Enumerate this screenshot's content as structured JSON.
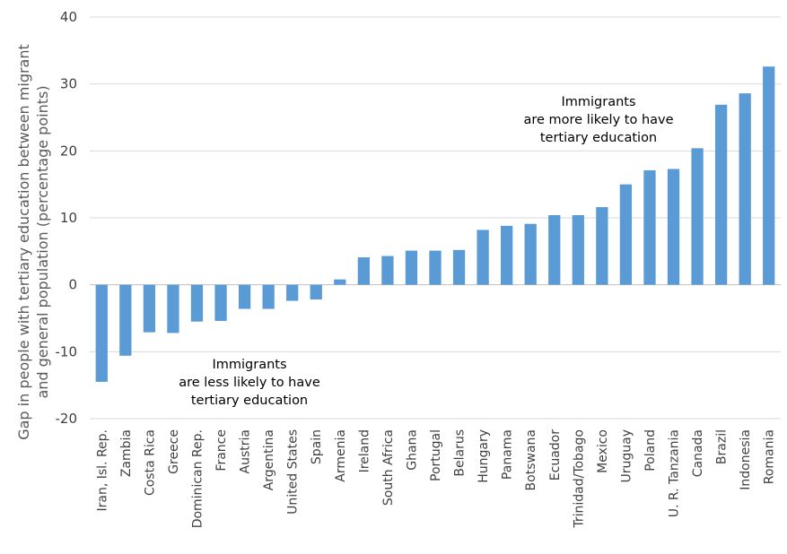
{
  "chart_data": {
    "type": "bar",
    "ylabel_lines": [
      "Gap in people with tertiary education between migrant",
      "and general population (percentage points)"
    ],
    "ylim": [
      -20,
      40
    ],
    "yticks": [
      -20,
      -10,
      0,
      10,
      20,
      30,
      40
    ],
    "grid": true,
    "bar_color": "#5b9bd5",
    "categories": [
      "Iran, Isl. Rep.",
      "Zambia",
      "Costa Rica",
      "Greece",
      "Dominican Rep.",
      "France",
      "Austria",
      "Argentina",
      "United States",
      "Spain",
      "Armenia",
      "Ireland",
      "South Africa",
      "Ghana",
      "Portugal",
      "Belarus",
      "Hungary",
      "Panama",
      "Botswana",
      "Ecuador",
      "Trinidad/Tobago",
      "Mexico",
      "Uruguay",
      "Poland",
      "U. R. Tanzania",
      "Canada",
      "Brazil",
      "Indonesia",
      "Romania"
    ],
    "values": [
      -14.5,
      -10.6,
      -7.1,
      -7.2,
      -5.5,
      -5.4,
      -3.6,
      -3.6,
      -2.4,
      -2.2,
      0.8,
      4.1,
      4.3,
      5.1,
      5.1,
      5.2,
      8.2,
      8.8,
      9.1,
      10.4,
      10.4,
      11.6,
      15.0,
      17.1,
      17.3,
      20.4,
      26.9,
      28.6,
      32.6
    ],
    "annotations": [
      {
        "lines": [
          "Immigrants",
          "are more likely to have",
          "tertiary education"
        ]
      },
      {
        "lines": [
          "Immigrants",
          "are less likely to have",
          "tertiary education"
        ]
      }
    ]
  }
}
